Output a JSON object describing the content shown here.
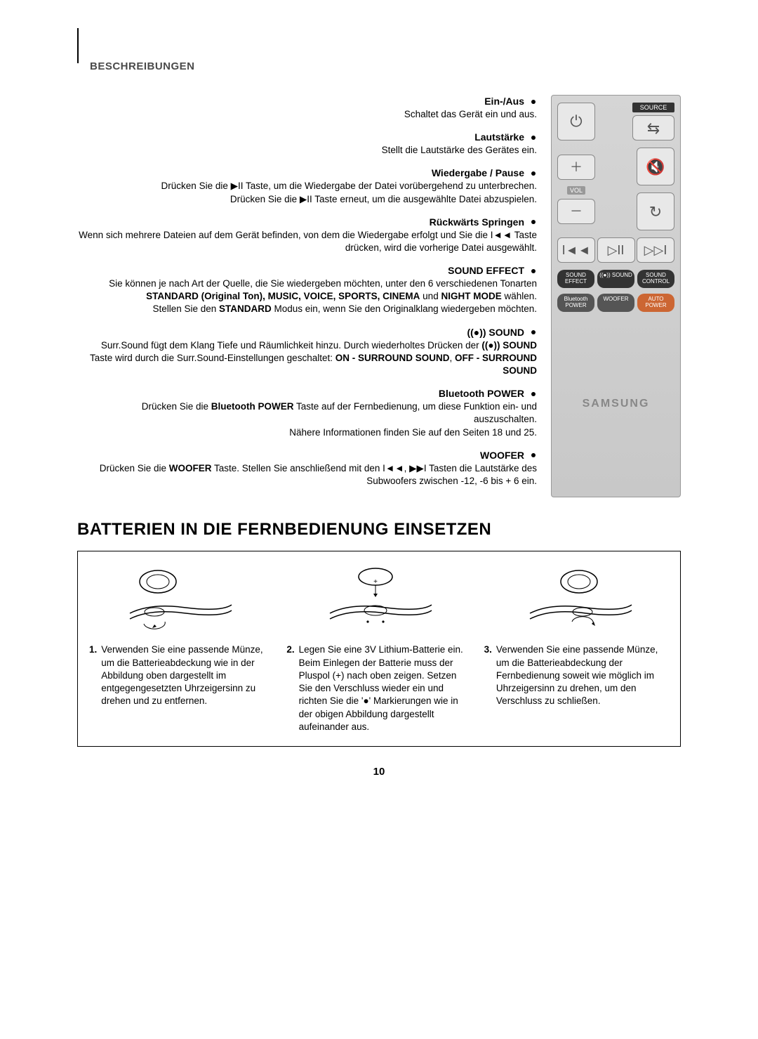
{
  "breadcrumb": "BESCHREIBUNGEN",
  "remote": {
    "source_label": "SOURCE",
    "vol_label": "VOL",
    "effect_row": [
      "SOUND EFFECT",
      "((●)) SOUND",
      "SOUND CONTROL"
    ],
    "power_row": [
      "Bluetooth POWER",
      "WOOFER",
      "AUTO POWER"
    ],
    "brand": "SAMSUNG"
  },
  "items": [
    {
      "title": "Ein-/Aus",
      "body": "Schaltet das Gerät ein und aus."
    },
    {
      "title": "Lautstärke",
      "body": "Stellt die Lautstärke des Gerätes ein."
    },
    {
      "title": "Wiedergabe / Pause",
      "body": "Drücken Sie die ▶II Taste, um die Wiedergabe der Datei vorübergehend zu unterbrechen.\nDrücken Sie die ▶II Taste erneut, um die ausgewählte Datei abzuspielen."
    },
    {
      "title": "Rückwärts Springen",
      "body": "Wenn sich mehrere Dateien auf dem Gerät befinden, von dem die Wiedergabe erfolgt und Sie die I◄◄ Taste drücken, wird die vorherige Datei ausgewählt."
    },
    {
      "title": "SOUND EFFECT",
      "body_html": "Sie können je nach Art der Quelle, die Sie wiedergeben möchten, unter den 6 verschiedenen Tonarten <b>STANDARD (Original Ton), MUSIC, VOICE, SPORTS, CINEMA</b> und <b>NIGHT MODE</b> wählen.\nStellen Sie den <b>STANDARD</b> Modus ein, wenn Sie den Originalklang wiedergeben möchten."
    },
    {
      "title": "((●)) SOUND",
      "body_html": "Surr.Sound fügt dem Klang Tiefe und Räumlichkeit hinzu. Durch wiederholtes Drücken der <b>((●)) SOUND</b> Taste wird durch die Surr.Sound-Einstellungen geschaltet: <b>ON - SURROUND SOUND</b>, <b>OFF - SURROUND SOUND</b>"
    },
    {
      "title": "Bluetooth POWER",
      "body_html": "Drücken Sie die <b>Bluetooth POWER</b> Taste auf der Fernbedienung, um diese Funktion ein- und auszuschalten.\nNähere Informationen finden Sie auf den Seiten 18 und 25."
    },
    {
      "title": "WOOFER",
      "body_html": "Drücken Sie die <b>WOOFER</b> Taste. Stellen Sie anschließend mit den I◄◄, ▶▶I Tasten die Lautstärke des Subwoofers zwischen -12, -6 bis + 6 ein."
    }
  ],
  "section_heading": "BATTERIEN IN DIE FERNBEDIENUNG EINSETZEN",
  "battery_steps": [
    {
      "n": "1.",
      "text": "Verwenden Sie eine passende Münze, um die Batterieabdeckung wie in der Abbildung oben dargestellt im entgegengesetzten Uhrzeigersinn zu drehen und zu entfernen."
    },
    {
      "n": "2.",
      "text": "Legen Sie eine 3V Lithium-Batterie ein. Beim Einlegen der Batterie muss der Pluspol (+) nach oben zeigen. Setzen Sie den Verschluss wieder ein und richten Sie die '●' Markierungen wie in der obigen Abbildung dargestellt aufeinander aus."
    },
    {
      "n": "3.",
      "text": "Verwenden Sie eine passende Münze, um die Batterieabdeckung der Fernbedienung soweit wie möglich im Uhrzeigersinn zu drehen, um den Verschluss zu schließen."
    }
  ],
  "page_number": "10",
  "colors": {
    "text": "#000000",
    "bg": "#ffffff",
    "remote_bg": "#cfcfcf",
    "pill_bg": "#555555",
    "pill_orange": "#cc6633",
    "brand": "#888888"
  }
}
